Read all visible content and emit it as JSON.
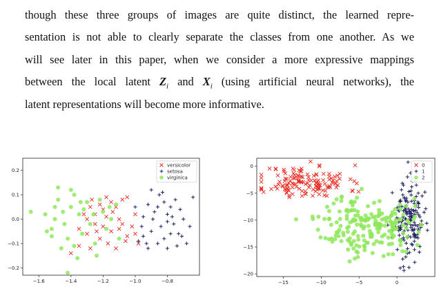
{
  "paragraph": {
    "line1": "though these three groups of images are quite distinct, the learned repre-",
    "line2": "sentation is not able to clearly separate the classes from one another. As we",
    "line3": "will see later in this paper, when we consider a more expressive mappings",
    "line4a": "between the local latent ",
    "line4_z": "Z",
    "line4_zi": "i",
    "line4b": " and ",
    "line4_x": "X",
    "line4_xi": "i",
    "line4c": " (using artificial neural networks), the",
    "line5": "latent representations will become more informative."
  },
  "colors": {
    "red": "#e8261c",
    "navy": "#1c1f5e",
    "green": "#8ee85a"
  },
  "chart_data": [
    {
      "type": "scatter",
      "xlim": [
        -1.7,
        -0.6
      ],
      "ylim": [
        -0.23,
        0.25
      ],
      "xticks": [
        "-1.6",
        "-1.4",
        "-1.2",
        "-1.0",
        "-0.8"
      ],
      "xtick_values": [
        -1.6,
        -1.4,
        -1.2,
        -1.0,
        -0.8
      ],
      "yticks": [
        "0.2",
        "0.1",
        "0.0",
        "-0.1",
        "-0.2"
      ],
      "ytick_values": [
        0.2,
        0.1,
        0.0,
        -0.1,
        -0.2
      ],
      "legend_position": "top-right",
      "series": [
        {
          "name": "versicolor",
          "marker": "x",
          "color": "#e8261c",
          "points": [
            [
              -1.05,
              0.09
            ],
            [
              -1.08,
              0.08
            ],
            [
              -1.12,
              0.05
            ],
            [
              -1.15,
              0.07
            ],
            [
              -1.2,
              0.04
            ],
            [
              -1.22,
              0.06
            ],
            [
              -1.25,
              0.02
            ],
            [
              -1.28,
              0.05
            ],
            [
              -1.18,
              0.01
            ],
            [
              -1.14,
              0.03
            ],
            [
              -1.3,
              0.0
            ],
            [
              -1.25,
              -0.02
            ],
            [
              -1.2,
              -0.03
            ],
            [
              -1.15,
              -0.05
            ],
            [
              -1.1,
              -0.04
            ],
            [
              -1.05,
              -0.07
            ],
            [
              -1.0,
              -0.06
            ],
            [
              -1.22,
              -0.08
            ],
            [
              -1.3,
              -0.06
            ],
            [
              -1.35,
              -0.04
            ],
            [
              -1.32,
              0.02
            ],
            [
              -1.27,
              0.08
            ],
            [
              -1.17,
              -0.1
            ],
            [
              -1.08,
              -0.02
            ],
            [
              -1.12,
              -0.12
            ],
            [
              -1.02,
              -0.03
            ],
            [
              -1.4,
              -0.14
            ],
            [
              -1.35,
              -0.11
            ],
            [
              -1.28,
              -0.12
            ],
            [
              -1.1,
              0.0
            ],
            [
              -1.0,
              0.02
            ],
            [
              -1.18,
              0.09
            ],
            [
              -0.98,
              -0.1
            ],
            [
              -1.24,
              -0.05
            ],
            [
              -1.06,
              -0.09
            ]
          ]
        },
        {
          "name": "setosa",
          "marker": "+",
          "color": "#1c1f5e",
          "points": [
            [
              -0.9,
              0.12
            ],
            [
              -0.85,
              0.1
            ],
            [
              -0.82,
              0.07
            ],
            [
              -0.78,
              0.05
            ],
            [
              -0.75,
              0.08
            ],
            [
              -0.8,
              0.02
            ],
            [
              -0.88,
              0.03
            ],
            [
              -0.92,
              0.06
            ],
            [
              -0.95,
              0.01
            ],
            [
              -0.72,
              0.04
            ],
            [
              -0.7,
              0.0
            ],
            [
              -0.76,
              -0.02
            ],
            [
              -0.84,
              -0.03
            ],
            [
              -0.9,
              -0.05
            ],
            [
              -0.95,
              -0.07
            ],
            [
              -0.82,
              -0.08
            ],
            [
              -0.78,
              -0.06
            ],
            [
              -0.74,
              -0.11
            ],
            [
              -0.86,
              -0.1
            ],
            [
              -0.92,
              -0.12
            ],
            [
              -0.98,
              -0.09
            ],
            [
              -0.8,
              -0.12
            ],
            [
              -0.66,
              -0.03
            ],
            [
              -0.68,
              -0.1
            ],
            [
              -0.64,
              0.09
            ],
            [
              -1.0,
              0.05
            ],
            [
              -0.86,
              0.05
            ],
            [
              -0.8,
              -0.01
            ],
            [
              -0.96,
              -0.03
            ],
            [
              -0.73,
              -0.06
            ],
            [
              -0.89,
              0.0
            ],
            [
              -0.83,
              0.11
            ],
            [
              -0.77,
              0.01
            ],
            [
              -0.93,
              -0.1
            ],
            [
              -0.71,
              -0.07
            ]
          ]
        },
        {
          "name": "virginica",
          "marker": "o",
          "color": "#8ee85a",
          "points": [
            [
              -1.65,
              0.03
            ],
            [
              -1.55,
              -0.05
            ],
            [
              -1.52,
              -0.04
            ],
            [
              -1.5,
              0.0
            ],
            [
              -1.48,
              0.08
            ],
            [
              -1.45,
              0.03
            ],
            [
              -1.42,
              -0.08
            ],
            [
              -1.4,
              0.05
            ],
            [
              -1.38,
              0.1
            ],
            [
              -1.35,
              0.02
            ],
            [
              -1.33,
              -0.06
            ],
            [
              -1.3,
              0.07
            ],
            [
              -1.28,
              -0.02
            ],
            [
              -1.25,
              -0.1
            ],
            [
              -1.22,
              0.08
            ],
            [
              -1.2,
              0.03
            ],
            [
              -1.18,
              -0.04
            ],
            [
              -1.15,
              0.0
            ],
            [
              -1.12,
              0.06
            ],
            [
              -1.1,
              -0.08
            ],
            [
              -1.44,
              -0.02
            ],
            [
              -1.5,
              0.05
            ],
            [
              -1.38,
              -0.11
            ],
            [
              -1.46,
              -0.12
            ],
            [
              -1.56,
              0.02
            ],
            [
              -1.4,
              0.12
            ],
            [
              -1.32,
              0.04
            ],
            [
              -1.26,
              0.02
            ],
            [
              -1.36,
              -0.16
            ],
            [
              -1.42,
              -0.22
            ],
            [
              -1.24,
              -0.15
            ],
            [
              -1.52,
              -0.07
            ],
            [
              -1.48,
              0.13
            ],
            [
              -1.34,
              0.07
            ],
            [
              -1.16,
              0.05
            ]
          ]
        }
      ]
    },
    {
      "type": "scatter",
      "xlim": [
        -18.5,
        5
      ],
      "ylim": [
        -20.5,
        1.5
      ],
      "xticks": [
        "-15",
        "-10",
        "-5",
        "0"
      ],
      "xtick_values": [
        -15,
        -10,
        -5,
        0
      ],
      "yticks": [
        "0",
        "-5",
        "-10",
        "-15",
        "-20"
      ],
      "ytick_values": [
        0,
        -5,
        -10,
        -15,
        -20
      ],
      "legend_position": "top-right",
      "series": [
        {
          "name": "0",
          "marker": "x",
          "color": "#e8261c",
          "cluster": {
            "cx": -12,
            "cy": -3,
            "sx": 2.8,
            "sy": 1.6,
            "n": 140,
            "seed": 11
          }
        },
        {
          "name": "1",
          "marker": "+",
          "color": "#1c1f5e",
          "cluster": {
            "cx": 1.5,
            "cy": -10,
            "sx": 1.0,
            "sy": 3.5,
            "n": 160,
            "seed": 23
          }
        },
        {
          "name": "2",
          "marker": "o",
          "color": "#8ee85a",
          "cluster": {
            "cx": -4,
            "cy": -11,
            "sx": 3.0,
            "sy": 2.8,
            "n": 200,
            "seed": 37
          }
        }
      ]
    }
  ]
}
